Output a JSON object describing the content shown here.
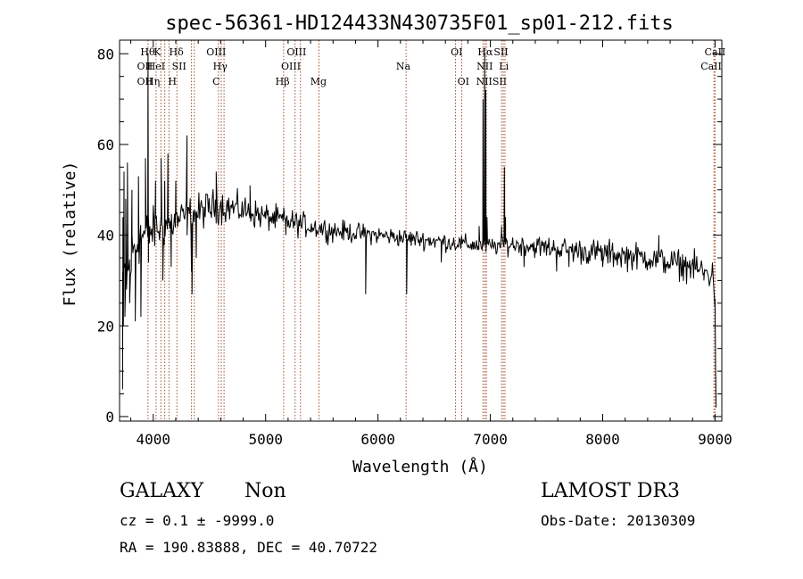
{
  "info": {
    "class": "GALAXY",
    "subclass": "Non",
    "survey": "LAMOST DR3",
    "cz": "cz = 0.1 ± -9999.0",
    "obs_date": "Obs-Date: 20130309",
    "radec": "RA = 190.83888, DEC =  40.70722"
  },
  "chart_data": {
    "type": "line",
    "title": "spec-56361-HD124433N430735F01_sp01-212.fits",
    "xlabel": "Wavelength (Å)",
    "ylabel": "Flux (relative)",
    "xlim": [
      3700,
      9060
    ],
    "ylim": [
      -1,
      83
    ],
    "x_ticks": [
      4000,
      5000,
      6000,
      7000,
      8000,
      9000
    ],
    "y_ticks": [
      0,
      20,
      40,
      60,
      80
    ],
    "grid": false,
    "line_color": "#000000",
    "marker_color": "#a0522d",
    "continuum": [
      [
        3700,
        32
      ],
      [
        3760,
        30
      ],
      [
        3820,
        36
      ],
      [
        3880,
        40
      ],
      [
        3950,
        40
      ],
      [
        4000,
        41
      ],
      [
        4100,
        42
      ],
      [
        4200,
        43
      ],
      [
        4300,
        44
      ],
      [
        4400,
        45
      ],
      [
        4500,
        46
      ],
      [
        4600,
        46.5
      ],
      [
        4700,
        46
      ],
      [
        4800,
        45.5
      ],
      [
        5000,
        44
      ],
      [
        5200,
        43
      ],
      [
        5400,
        42
      ],
      [
        5600,
        41
      ],
      [
        5800,
        40.5
      ],
      [
        6000,
        40
      ],
      [
        6200,
        39.5
      ],
      [
        6400,
        39
      ],
      [
        6600,
        38.5
      ],
      [
        6800,
        38
      ],
      [
        7000,
        37.5
      ],
      [
        7200,
        38
      ],
      [
        7400,
        37.5
      ],
      [
        7600,
        37
      ],
      [
        7800,
        36.5
      ],
      [
        8000,
        36
      ],
      [
        8200,
        35.5
      ],
      [
        8400,
        35
      ],
      [
        8600,
        34
      ],
      [
        8800,
        33
      ],
      [
        8980,
        31
      ],
      [
        9000,
        26
      ]
    ],
    "noise_amplitude": [
      [
        3700,
        9
      ],
      [
        3900,
        6
      ],
      [
        4000,
        5
      ],
      [
        4400,
        4
      ],
      [
        5000,
        3
      ],
      [
        6000,
        2
      ],
      [
        7000,
        2
      ],
      [
        7500,
        2.5
      ],
      [
        8000,
        3
      ],
      [
        8500,
        3
      ],
      [
        9000,
        3.5
      ]
    ],
    "peaks": [
      {
        "x": 3727,
        "y": 6
      },
      {
        "x": 3730,
        "y": 44
      },
      {
        "x": 3734,
        "y": 20
      },
      {
        "x": 3740,
        "y": 54
      },
      {
        "x": 3748,
        "y": 22
      },
      {
        "x": 3755,
        "y": 48
      },
      {
        "x": 3770,
        "y": 56
      },
      {
        "x": 3790,
        "y": 25
      },
      {
        "x": 3810,
        "y": 50
      },
      {
        "x": 3840,
        "y": 21
      },
      {
        "x": 3868,
        "y": 53
      },
      {
        "x": 3890,
        "y": 22
      },
      {
        "x": 3930,
        "y": 57
      },
      {
        "x": 3953,
        "y": 80
      },
      {
        "x": 3957,
        "y": 34
      },
      {
        "x": 3970,
        "y": 42
      },
      {
        "x": 4020,
        "y": 52
      },
      {
        "x": 4070,
        "y": 57
      },
      {
        "x": 4085,
        "y": 30
      },
      {
        "x": 4102,
        "y": 52
      },
      {
        "x": 4130,
        "y": 58
      },
      {
        "x": 4160,
        "y": 33
      },
      {
        "x": 4200,
        "y": 52
      },
      {
        "x": 4300,
        "y": 62
      },
      {
        "x": 4340,
        "y": 32
      },
      {
        "x": 4345,
        "y": 27
      },
      {
        "x": 4383,
        "y": 35
      },
      {
        "x": 4560,
        "y": 54
      },
      {
        "x": 4861,
        "y": 51
      },
      {
        "x": 5180,
        "y": 40
      },
      {
        "x": 5890,
        "y": 27
      },
      {
        "x": 6255,
        "y": 27
      },
      {
        "x": 6563,
        "y": 34
      },
      {
        "x": 6900,
        "y": 42
      },
      {
        "x": 6935,
        "y": 70
      },
      {
        "x": 6950,
        "y": 80
      },
      {
        "x": 6960,
        "y": 72
      },
      {
        "x": 6970,
        "y": 44
      },
      {
        "x": 7100,
        "y": 42
      },
      {
        "x": 7125,
        "y": 55
      },
      {
        "x": 7135,
        "y": 44
      },
      {
        "x": 7300,
        "y": 33
      },
      {
        "x": 7590,
        "y": 32
      },
      {
        "x": 7700,
        "y": 33
      },
      {
        "x": 8000,
        "y": 33
      },
      {
        "x": 8500,
        "y": 40
      },
      {
        "x": 8700,
        "y": 31
      },
      {
        "x": 8900,
        "y": 30
      },
      {
        "x": 9000,
        "y": 26
      },
      {
        "x": 9005,
        "y": 10
      },
      {
        "x": 9010,
        "y": 2
      }
    ],
    "lines": [
      {
        "x": 3950,
        "label": "Hθ",
        "row": 0
      },
      {
        "x": 4035,
        "label": "K",
        "row": 0
      },
      {
        "x": 4205,
        "label": "Hδ",
        "row": 0
      },
      {
        "x": 4560,
        "label": "OIII",
        "row": 0
      },
      {
        "x": 5275,
        "label": "OIII",
        "row": 0
      },
      {
        "x": 6700,
        "label": "OI",
        "row": 0
      },
      {
        "x": 6955,
        "label": "Hα",
        "row": 0
      },
      {
        "x": 7095,
        "label": "SII",
        "row": 0
      },
      {
        "x": 9000,
        "label": "CaII",
        "row": 0
      },
      {
        "x": 3925,
        "label": "OII",
        "row": 1
      },
      {
        "x": 4025,
        "label": "HeI",
        "row": 1
      },
      {
        "x": 4230,
        "label": "SII",
        "row": 1
      },
      {
        "x": 4595,
        "label": "Hγ",
        "row": 1
      },
      {
        "x": 5225,
        "label": "OIII",
        "row": 1
      },
      {
        "x": 6950,
        "label": "NII",
        "row": 1
      },
      {
        "x": 7120,
        "label": "Li",
        "row": 1
      },
      {
        "x": 8965,
        "label": "CaII",
        "row": 1
      },
      {
        "x": 3925,
        "label": "OII",
        "row": 2
      },
      {
        "x": 3995,
        "label": "Hη",
        "row": 2
      },
      {
        "x": 4170,
        "label": "H",
        "row": 2
      },
      {
        "x": 4560,
        "label": "C",
        "row": 2
      },
      {
        "x": 5150,
        "label": "Hβ",
        "row": 2
      },
      {
        "x": 5470,
        "label": "Mg",
        "row": 2
      },
      {
        "x": 6225,
        "label": "Na",
        "row": 1
      },
      {
        "x": 6760,
        "label": "OI",
        "row": 2
      },
      {
        "x": 7010,
        "label": "NIISII",
        "row": 2
      }
    ],
    "marker_x": [
      3953,
      4025,
      4068,
      4102,
      4140,
      4210,
      4340,
      4365,
      4580,
      4605,
      4630,
      5160,
      5262,
      5310,
      5475,
      6250,
      6690,
      6745,
      6935,
      6952,
      6965,
      7100,
      7115,
      7130,
      8990,
      9000
    ]
  }
}
